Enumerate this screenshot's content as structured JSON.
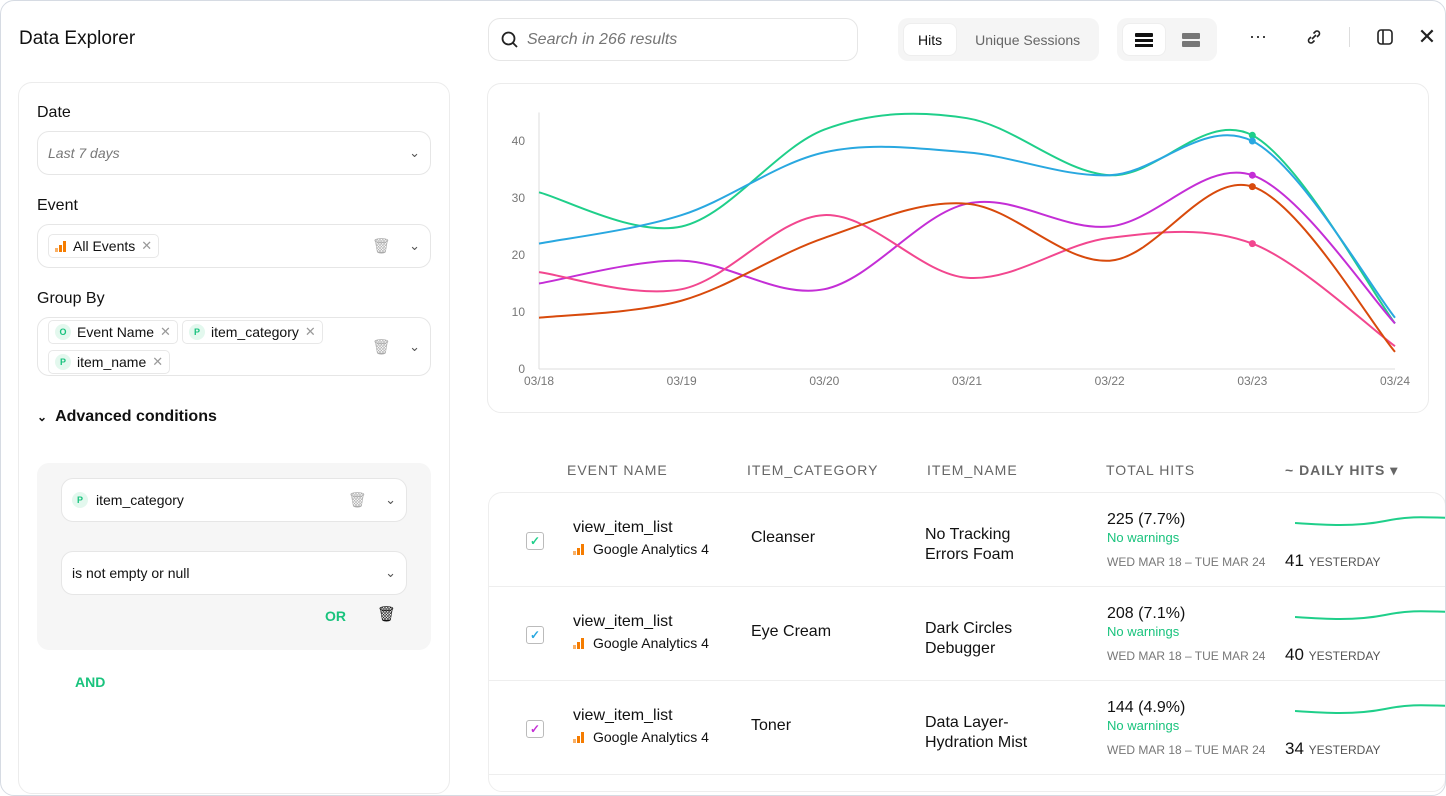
{
  "header": {
    "title": "Data Explorer",
    "search_placeholder": "Search in 266 results",
    "metric_tabs": [
      "Hits",
      "Unique Sessions"
    ],
    "active_metric": "Hits"
  },
  "filters": {
    "date_label": "Date",
    "date_value": "Last 7 days",
    "event_label": "Event",
    "event_chips": [
      "All Events"
    ],
    "group_by_label": "Group By",
    "group_by_chips": [
      {
        "badge": "O",
        "label": "Event Name"
      },
      {
        "badge": "P",
        "label": "item_category"
      },
      {
        "badge": "P",
        "label": "item_name"
      }
    ],
    "advanced_label": "Advanced conditions",
    "condition": {
      "badge": "P",
      "property": "item_category",
      "operator": "is not empty or null",
      "or_label": "OR"
    },
    "and_label": "AND"
  },
  "chart_data": {
    "type": "line",
    "categories": [
      "03/18",
      "03/19",
      "03/20",
      "03/21",
      "03/22",
      "03/23",
      "03/24"
    ],
    "ylim": [
      0,
      45
    ],
    "yticks": [
      0,
      10,
      20,
      30,
      40
    ],
    "grid": false,
    "series": [
      {
        "color": "#1fcf8a",
        "values": [
          31,
          25,
          42,
          44,
          34,
          41,
          8
        ]
      },
      {
        "color": "#29a8e0",
        "values": [
          22,
          27,
          38,
          38,
          34,
          40,
          9
        ]
      },
      {
        "color": "#c42ed6",
        "values": [
          15,
          19,
          14,
          29,
          25,
          34,
          8
        ]
      },
      {
        "color": "#f2478f",
        "values": [
          17,
          14,
          27,
          16,
          23,
          22,
          4
        ]
      },
      {
        "color": "#d84a0c",
        "values": [
          9,
          12,
          23,
          29,
          19,
          32,
          3
        ]
      }
    ],
    "highlight_index": 5
  },
  "table": {
    "columns": [
      "EVENT NAME",
      "ITEM_CATEGORY",
      "ITEM_NAME",
      "TOTAL HITS",
      "~ DAILY HITS ▾"
    ],
    "rows": [
      {
        "event": "view_item_list",
        "source": "Google Analytics 4",
        "category": "Cleanser",
        "item": "No Tracking Errors Foam",
        "total": "225 (7.7%)",
        "warnings": "No warnings",
        "range": "WED MAR 18 – TUE MAR 24",
        "yesterday": "41",
        "yesterday_label": "YESTERDAY",
        "color": "#1fcf8a"
      },
      {
        "event": "view_item_list",
        "source": "Google Analytics 4",
        "category": "Eye Cream",
        "item": "Dark Circles Debugger",
        "total": "208 (7.1%)",
        "warnings": "No warnings",
        "range": "WED MAR 18 – TUE MAR 24",
        "yesterday": "40",
        "yesterday_label": "YESTERDAY",
        "color": "#29a8e0"
      },
      {
        "event": "view_item_list",
        "source": "Google Analytics 4",
        "category": "Toner",
        "item": "Data Layer-Hydration Mist",
        "total": "144 (4.9%)",
        "warnings": "No warnings",
        "range": "WED MAR 18 – TUE MAR 24",
        "yesterday": "34",
        "yesterday_label": "YESTERDAY",
        "color": "#c42ed6"
      }
    ]
  }
}
